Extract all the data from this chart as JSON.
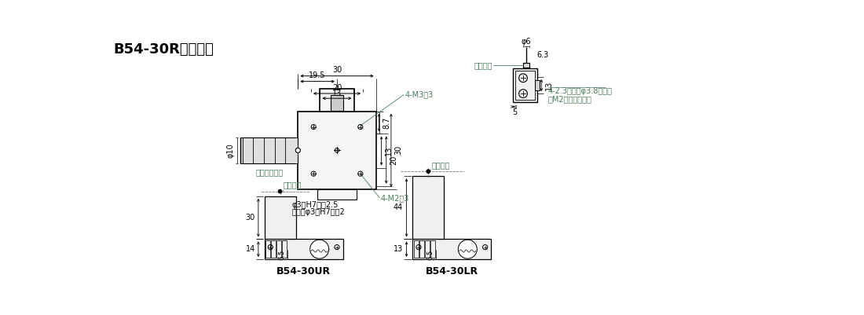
{
  "title": "B54-30Rシリーズ",
  "bg_color": "#ffffff",
  "line_color": "#000000",
  "dim_color": "#000000",
  "annotation_color": "#4a7c59",
  "subtitle_ur": "B54-30UR",
  "subtitle_lr": "B54-30LR"
}
